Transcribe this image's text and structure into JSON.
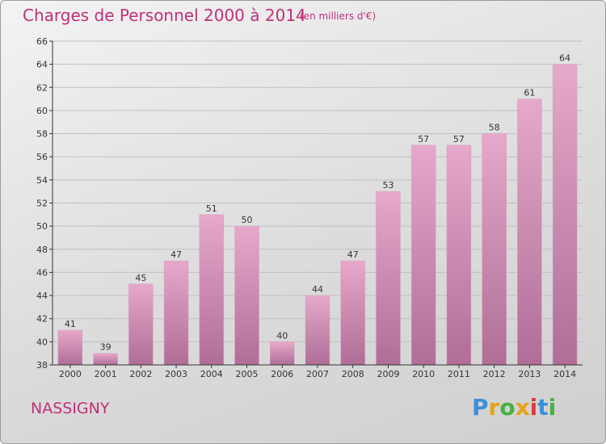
{
  "header": {
    "title": "Charges de Personnel 2000 à 2014",
    "subtitle": "(en milliers d'€)"
  },
  "footer": {
    "commune": "NASSIGNY",
    "logo_text": "Proxiti",
    "logo_colors": [
      "#3c8fd6",
      "#e8a317",
      "#47b043",
      "#e8a317",
      "#e23a3a",
      "#3c8fd6",
      "#47b043"
    ]
  },
  "colors": {
    "title": "#c0307a",
    "bar_top": "#e6a8cb",
    "bar_bottom": "#b06e97",
    "axis": "#333333",
    "grid": "#bfbfbf"
  },
  "chart_data": {
    "type": "bar",
    "title": "Charges de Personnel 2000 à 2014",
    "subtitle": "(en milliers d'€)",
    "categories": [
      "2000",
      "2001",
      "2002",
      "2003",
      "2004",
      "2005",
      "2006",
      "2007",
      "2008",
      "2009",
      "2010",
      "2011",
      "2012",
      "2013",
      "2014"
    ],
    "values": [
      41,
      39,
      45,
      47,
      51,
      50,
      40,
      44,
      47,
      53,
      57,
      57,
      58,
      61,
      64
    ],
    "ylim": [
      38,
      66
    ],
    "yticks": [
      38,
      40,
      42,
      44,
      46,
      48,
      50,
      52,
      54,
      56,
      58,
      60,
      62,
      64,
      66
    ],
    "grid": true,
    "data_labels": true
  }
}
